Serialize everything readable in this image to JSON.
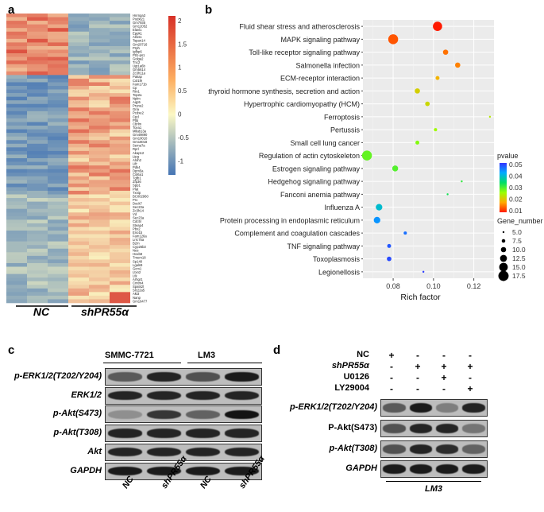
{
  "panels": {
    "a": "a",
    "b": "b",
    "c": "c",
    "d": "d"
  },
  "heatmap": {
    "genes": [
      "Hnrnpa3",
      "Podxl21",
      "Gm7935",
      "Gm12052",
      "Elavl1",
      "Eppk1",
      "Atl1s1",
      "Tspan14",
      "Gm20716",
      "Prph",
      "Igfbp6",
      "Ptl1-ps1",
      "Golga2",
      "Tnc2",
      "Ugt1a6b",
      "Gm5614",
      "Zc3h11a",
      "Pakap",
      "Col1l9",
      "Fam171b",
      "Cp",
      "Rtn1",
      "Top2a",
      "Nplm",
      "Aqp5",
      "Prune2",
      "Gria",
      "Pcdxe2",
      "Cpd",
      "Ptlp",
      "Cbrlm",
      "Tcea1",
      "Mllab13a",
      "Gm49890",
      "Gm10010",
      "Gm18018",
      "Sema7a",
      "Rprl",
      "Akap12",
      "Lipg",
      "Atoh2",
      "Lifr",
      "Pdk4",
      "Dpm5a",
      "Col6a1",
      "Tgfb1",
      "Zfp36",
      "Spp1",
      "Plat",
      "Txnip",
      "BC002960",
      "Prx",
      "Dock7",
      "Sec23a",
      "Zc3h14",
      "Vd",
      "Sec23a",
      "Cdc5l",
      "Steap4",
      "Pbx2",
      "Eno1b",
      "Fam126a",
      "Lrrc75a",
      "B2m",
      "Cyp26b3",
      "Nes",
      "Hoxb8",
      "Tmem18",
      "Sp140",
      "Lgals9",
      "Gcm1",
      "Ltxn2",
      "Ltk",
      "Arhgr1",
      "Cmtm4",
      "Spats2l",
      "Slc22a5",
      "Akt3",
      "Nanp",
      "Gm16477"
    ],
    "legend_ticks": [
      "2",
      "1.5",
      "1",
      "0.5",
      "0",
      "-0.5",
      "-1"
    ],
    "group_labels": [
      "NC",
      "shPR55α"
    ]
  },
  "colors": {
    "heat_high": "#d73027",
    "heat_mid": "#fbf8c4",
    "heat_low": "#4575b4",
    "pvalue_high": "#3333ff",
    "pvalue_low": "#ff2200"
  },
  "chart_data": {
    "type": "scatter",
    "xlabel": "Rich factor",
    "ylabel": "",
    "xlim": [
      0.065,
      0.13
    ],
    "x_ticks": [
      0.08,
      0.1,
      0.12
    ],
    "x_tick_labels": [
      "0.08",
      "0.10",
      "0.12"
    ],
    "categories": [
      "Fluid shear stress and atherosclerosis",
      "MAPK signaling pathway",
      "Toll-like receptor signaling pathway",
      "Salmonella infection",
      "ECM-receptor interaction",
      "Parathyroid hormone synthesis, secretion and action",
      "Hypertrophic cardiomyopathy (HCM)",
      "Ferroptosis",
      "Pertussis",
      "Small cell lung cancer",
      "Regulation of actin cytoskeleton",
      "Estrogen signaling pathway",
      "Hedgehog signaling pathway",
      "Fanconi anemia pathway",
      "Influenza A",
      "Protein processing in endoplasmic reticulum",
      "Complement and coagulation cascades",
      "TNF signaling pathway",
      "Toxoplasmosis",
      "Legionellosis"
    ],
    "points": [
      {
        "pathway": "Fluid shear stress and atherosclerosis",
        "rich_factor": 0.102,
        "pvalue": 0.001,
        "gene_number": 16
      },
      {
        "pathway": "MAPK signaling pathway",
        "rich_factor": 0.08,
        "pvalue": 0.005,
        "gene_number": 17
      },
      {
        "pathway": "Toll-like receptor signaling pathway",
        "rich_factor": 0.106,
        "pvalue": 0.007,
        "gene_number": 10
      },
      {
        "pathway": "Salmonella infection",
        "rich_factor": 0.112,
        "pvalue": 0.008,
        "gene_number": 10
      },
      {
        "pathway": "ECM-receptor interaction",
        "rich_factor": 0.102,
        "pvalue": 0.012,
        "gene_number": 8
      },
      {
        "pathway": "Parathyroid hormone synthesis, secretion and action",
        "rich_factor": 0.092,
        "pvalue": 0.015,
        "gene_number": 10
      },
      {
        "pathway": "Hypertrophic cardiomyopathy (HCM)",
        "rich_factor": 0.097,
        "pvalue": 0.016,
        "gene_number": 9
      },
      {
        "pathway": "Ferroptosis",
        "rich_factor": 0.128,
        "pvalue": 0.018,
        "gene_number": 5
      },
      {
        "pathway": "Pertussis",
        "rich_factor": 0.101,
        "pvalue": 0.02,
        "gene_number": 7
      },
      {
        "pathway": "Small cell lung cancer",
        "rich_factor": 0.092,
        "pvalue": 0.022,
        "gene_number": 8
      },
      {
        "pathway": "Regulation of actin cytoskeleton",
        "rich_factor": 0.067,
        "pvalue": 0.024,
        "gene_number": 17
      },
      {
        "pathway": "Estrogen signaling pathway",
        "rich_factor": 0.081,
        "pvalue": 0.025,
        "gene_number": 11
      },
      {
        "pathway": "Hedgehog signaling pathway",
        "rich_factor": 0.114,
        "pvalue": 0.027,
        "gene_number": 5
      },
      {
        "pathway": "Fanconi anemia pathway",
        "rich_factor": 0.107,
        "pvalue": 0.029,
        "gene_number": 5
      },
      {
        "pathway": "Influenza A",
        "rich_factor": 0.073,
        "pvalue": 0.037,
        "gene_number": 12
      },
      {
        "pathway": "Protein processing in endoplasmic reticulum",
        "rich_factor": 0.072,
        "pvalue": 0.042,
        "gene_number": 12
      },
      {
        "pathway": "Complement and coagulation cascades",
        "rich_factor": 0.086,
        "pvalue": 0.045,
        "gene_number": 7
      },
      {
        "pathway": "TNF signaling pathway",
        "rich_factor": 0.078,
        "pvalue": 0.047,
        "gene_number": 8
      },
      {
        "pathway": "Toxoplasmosis",
        "rich_factor": 0.078,
        "pvalue": 0.048,
        "gene_number": 9
      },
      {
        "pathway": "Legionellosis",
        "rich_factor": 0.095,
        "pvalue": 0.049,
        "gene_number": 5
      }
    ],
    "legend": {
      "pvalue_title": "pvalue",
      "pvalue_ticks": [
        "0.05",
        "0.04",
        "0.03",
        "0.02",
        "0.01"
      ],
      "size_title": "Gene_number",
      "size_ticks": [
        "5.0",
        "7.5",
        "10.0",
        "12.5",
        "15.0",
        "17.5"
      ],
      "size_values": [
        5.0,
        7.5,
        10.0,
        12.5,
        15.0,
        17.5
      ]
    }
  },
  "blot_c": {
    "cell_lines": [
      "SMMC-7721",
      "LM3"
    ],
    "rows": [
      "p-ERK1/2(T202/Y204)",
      "ERK1/2",
      "p-Akt(S473)",
      "p-Akt(T308)",
      "Akt",
      "GAPDH"
    ],
    "lanes": [
      "NC",
      "shPR55α",
      "NC",
      "shPR55α"
    ],
    "band_intensities": [
      [
        0.55,
        0.85,
        0.6,
        0.9
      ],
      [
        0.85,
        0.85,
        0.85,
        0.85
      ],
      [
        0.25,
        0.75,
        0.5,
        0.95
      ],
      [
        0.85,
        0.85,
        0.85,
        0.85
      ],
      [
        0.85,
        0.85,
        0.85,
        0.85
      ],
      [
        0.9,
        0.9,
        0.9,
        0.9
      ]
    ]
  },
  "blot_d": {
    "conditions": [
      "NC",
      "shPR55α",
      "U0126",
      "LY29004"
    ],
    "signs": [
      [
        "+",
        "-",
        "-",
        "-"
      ],
      [
        "-",
        "+",
        "+",
        "+"
      ],
      [
        "-",
        "-",
        "+",
        "-"
      ],
      [
        "-",
        "-",
        "-",
        "+"
      ]
    ],
    "rows": [
      "p-ERK1/2(T202/Y204)",
      "P-Akt(S473)",
      "p-Akt(T308)",
      "GAPDH"
    ],
    "cell_line": "LM3",
    "band_intensities": [
      [
        0.55,
        0.9,
        0.35,
        0.85
      ],
      [
        0.6,
        0.85,
        0.85,
        0.4
      ],
      [
        0.6,
        0.85,
        0.8,
        0.5
      ],
      [
        0.9,
        0.9,
        0.9,
        0.9
      ]
    ]
  }
}
